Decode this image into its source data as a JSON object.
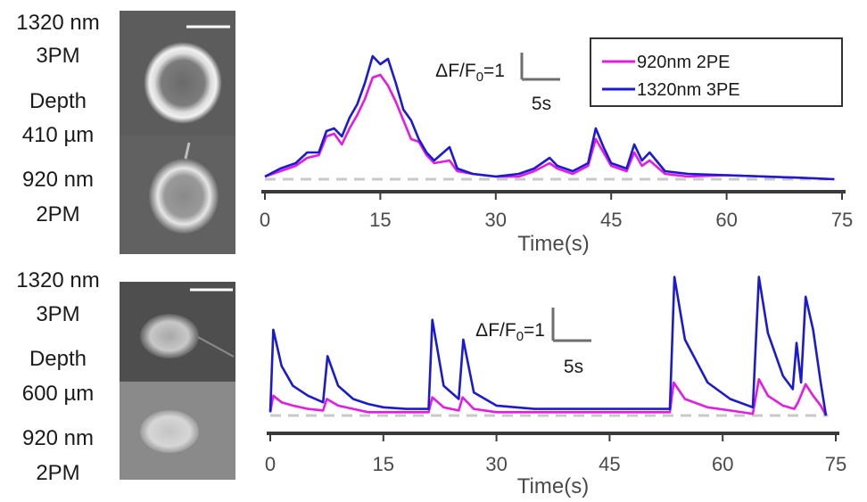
{
  "side_labels": {
    "top": [
      "1320 nm",
      "3PM",
      "Depth",
      "410 µm",
      "920 nm",
      "2PM"
    ],
    "bottom": [
      "1320 nm",
      "3PM",
      "Depth",
      "600 µm",
      "920 nm",
      "2PM"
    ]
  },
  "legend": {
    "entries": [
      "920nm 2PE",
      "1320nm 3PE"
    ]
  },
  "colors": {
    "pe2": "#e619e6",
    "pe3": "#1a1ad6",
    "baseline": "#c8c8c8",
    "axis": "#3a3a3a"
  },
  "chart_data": [
    {
      "type": "line",
      "xlabel": "Time(s)",
      "xlim": [
        0,
        75
      ],
      "xticks": [
        0,
        15,
        30,
        45,
        60,
        75
      ],
      "ylim": [
        0,
        5.5
      ],
      "scalebar": {
        "y_label_parts": [
          "ΔF/F",
          "0",
          "=1"
        ],
        "y_value": 1,
        "x_label": "5s",
        "x_value": 5
      },
      "baseline": 0,
      "series": [
        {
          "name": "920nm 2PE",
          "color": "#e619e6",
          "points": [
            [
              0,
              0.1
            ],
            [
              2,
              0.3
            ],
            [
              4,
              0.5
            ],
            [
              5.5,
              0.8
            ],
            [
              7,
              0.9
            ],
            [
              8,
              1.6
            ],
            [
              9,
              1.7
            ],
            [
              10,
              1.3
            ],
            [
              11,
              1.9
            ],
            [
              12,
              2.4
            ],
            [
              13,
              3.0
            ],
            [
              14,
              3.8
            ],
            [
              15,
              3.9
            ],
            [
              16,
              3.5
            ],
            [
              17,
              2.9
            ],
            [
              18,
              2.2
            ],
            [
              19,
              1.5
            ],
            [
              20,
              1.4
            ],
            [
              21,
              0.9
            ],
            [
              22,
              0.6
            ],
            [
              24,
              0.7
            ],
            [
              25,
              0.3
            ],
            [
              27,
              0.2
            ],
            [
              30,
              0.1
            ],
            [
              33,
              0.1
            ],
            [
              35,
              0.3
            ],
            [
              37,
              0.6
            ],
            [
              38,
              0.4
            ],
            [
              40,
              0.2
            ],
            [
              42,
              0.5
            ],
            [
              43,
              1.5
            ],
            [
              44,
              1.0
            ],
            [
              45,
              0.5
            ],
            [
              47,
              0.3
            ],
            [
              48,
              1.0
            ],
            [
              49,
              0.5
            ],
            [
              50,
              0.7
            ],
            [
              52,
              0.2
            ],
            [
              55,
              0.1
            ],
            [
              60,
              0.15
            ],
            [
              65,
              0.1
            ],
            [
              70,
              0.05
            ],
            [
              74,
              0.0
            ]
          ]
        },
        {
          "name": "1320nm 3PE",
          "color": "#1a1ad6",
          "points": [
            [
              0,
              0.1
            ],
            [
              2,
              0.4
            ],
            [
              4,
              0.6
            ],
            [
              5.5,
              1.0
            ],
            [
              7,
              1.0
            ],
            [
              8,
              1.8
            ],
            [
              9,
              1.9
            ],
            [
              10,
              1.6
            ],
            [
              11,
              2.3
            ],
            [
              12,
              2.8
            ],
            [
              13,
              3.6
            ],
            [
              14,
              4.6
            ],
            [
              15,
              4.3
            ],
            [
              16,
              4.5
            ],
            [
              17,
              3.6
            ],
            [
              18,
              2.6
            ],
            [
              19,
              2.2
            ],
            [
              20,
              1.5
            ],
            [
              21,
              1.0
            ],
            [
              22,
              0.7
            ],
            [
              24,
              1.2
            ],
            [
              25,
              0.4
            ],
            [
              27,
              0.2
            ],
            [
              30,
              0.1
            ],
            [
              33,
              0.2
            ],
            [
              35,
              0.4
            ],
            [
              37,
              0.8
            ],
            [
              38,
              0.5
            ],
            [
              40,
              0.3
            ],
            [
              42,
              0.6
            ],
            [
              43,
              1.9
            ],
            [
              44,
              1.2
            ],
            [
              45,
              0.6
            ],
            [
              47,
              0.4
            ],
            [
              48,
              1.3
            ],
            [
              49,
              0.7
            ],
            [
              50,
              1.0
            ],
            [
              52,
              0.3
            ],
            [
              55,
              0.2
            ],
            [
              60,
              0.15
            ],
            [
              65,
              0.1
            ],
            [
              70,
              0.05
            ],
            [
              74,
              0.0
            ]
          ]
        }
      ]
    },
    {
      "type": "line",
      "xlabel": "Time(s)",
      "xlim": [
        0,
        75
      ],
      "xticks": [
        0,
        15,
        30,
        45,
        60,
        75
      ],
      "ylim": [
        0,
        4.3
      ],
      "scalebar": {
        "y_label_parts": [
          "ΔF/F",
          "0",
          "=1"
        ],
        "y_value": 1,
        "x_label": "5s",
        "x_value": 5
      },
      "baseline": 0,
      "series": [
        {
          "name": "920nm 2PE",
          "color": "#e619e6",
          "points": [
            [
              0,
              0.1
            ],
            [
              0.4,
              0.6
            ],
            [
              1.5,
              0.4
            ],
            [
              3,
              0.3
            ],
            [
              5,
              0.2
            ],
            [
              7,
              0.15
            ],
            [
              7.5,
              0.5
            ],
            [
              9,
              0.3
            ],
            [
              11,
              0.2
            ],
            [
              13,
              0.1
            ],
            [
              15,
              0.1
            ],
            [
              18,
              0.1
            ],
            [
              21,
              0.1
            ],
            [
              21.5,
              0.55
            ],
            [
              23,
              0.25
            ],
            [
              25,
              0.15
            ],
            [
              25.5,
              0.55
            ],
            [
              27,
              0.2
            ],
            [
              30,
              0.1
            ],
            [
              35,
              0.1
            ],
            [
              40,
              0.1
            ],
            [
              45,
              0.1
            ],
            [
              50,
              0.1
            ],
            [
              53,
              0.1
            ],
            [
              53.5,
              1.0
            ],
            [
              55,
              0.5
            ],
            [
              58,
              0.25
            ],
            [
              61,
              0.15
            ],
            [
              64,
              0.05
            ],
            [
              64.8,
              1.1
            ],
            [
              66,
              0.6
            ],
            [
              68,
              0.3
            ],
            [
              69.5,
              0.2
            ],
            [
              70,
              0.4
            ],
            [
              71,
              0.95
            ],
            [
              72,
              0.6
            ],
            [
              73,
              0.3
            ],
            [
              73.7,
              0.0
            ]
          ]
        },
        {
          "name": "1320nm 3PE",
          "color": "#1a1ad6",
          "points": [
            [
              0,
              0.1
            ],
            [
              0.4,
              2.6
            ],
            [
              1.5,
              1.5
            ],
            [
              3,
              0.9
            ],
            [
              5,
              0.6
            ],
            [
              7,
              0.4
            ],
            [
              7.6,
              1.8
            ],
            [
              9,
              0.9
            ],
            [
              11,
              0.5
            ],
            [
              13,
              0.35
            ],
            [
              15,
              0.25
            ],
            [
              18,
              0.2
            ],
            [
              21,
              0.2
            ],
            [
              21.5,
              2.9
            ],
            [
              23,
              0.9
            ],
            [
              25,
              0.5
            ],
            [
              25.6,
              2.3
            ],
            [
              27,
              0.7
            ],
            [
              30,
              0.3
            ],
            [
              35,
              0.2
            ],
            [
              40,
              0.2
            ],
            [
              45,
              0.2
            ],
            [
              50,
              0.2
            ],
            [
              53,
              0.2
            ],
            [
              53.6,
              4.2
            ],
            [
              55,
              2.3
            ],
            [
              58,
              1.0
            ],
            [
              61,
              0.5
            ],
            [
              64,
              0.25
            ],
            [
              64.8,
              4.2
            ],
            [
              66,
              2.5
            ],
            [
              68,
              1.2
            ],
            [
              69.3,
              0.8
            ],
            [
              69.8,
              2.2
            ],
            [
              70.4,
              1.0
            ],
            [
              71,
              3.6
            ],
            [
              72,
              2.6
            ],
            [
              73,
              1.0
            ],
            [
              73.7,
              0.0
            ]
          ]
        }
      ]
    }
  ]
}
